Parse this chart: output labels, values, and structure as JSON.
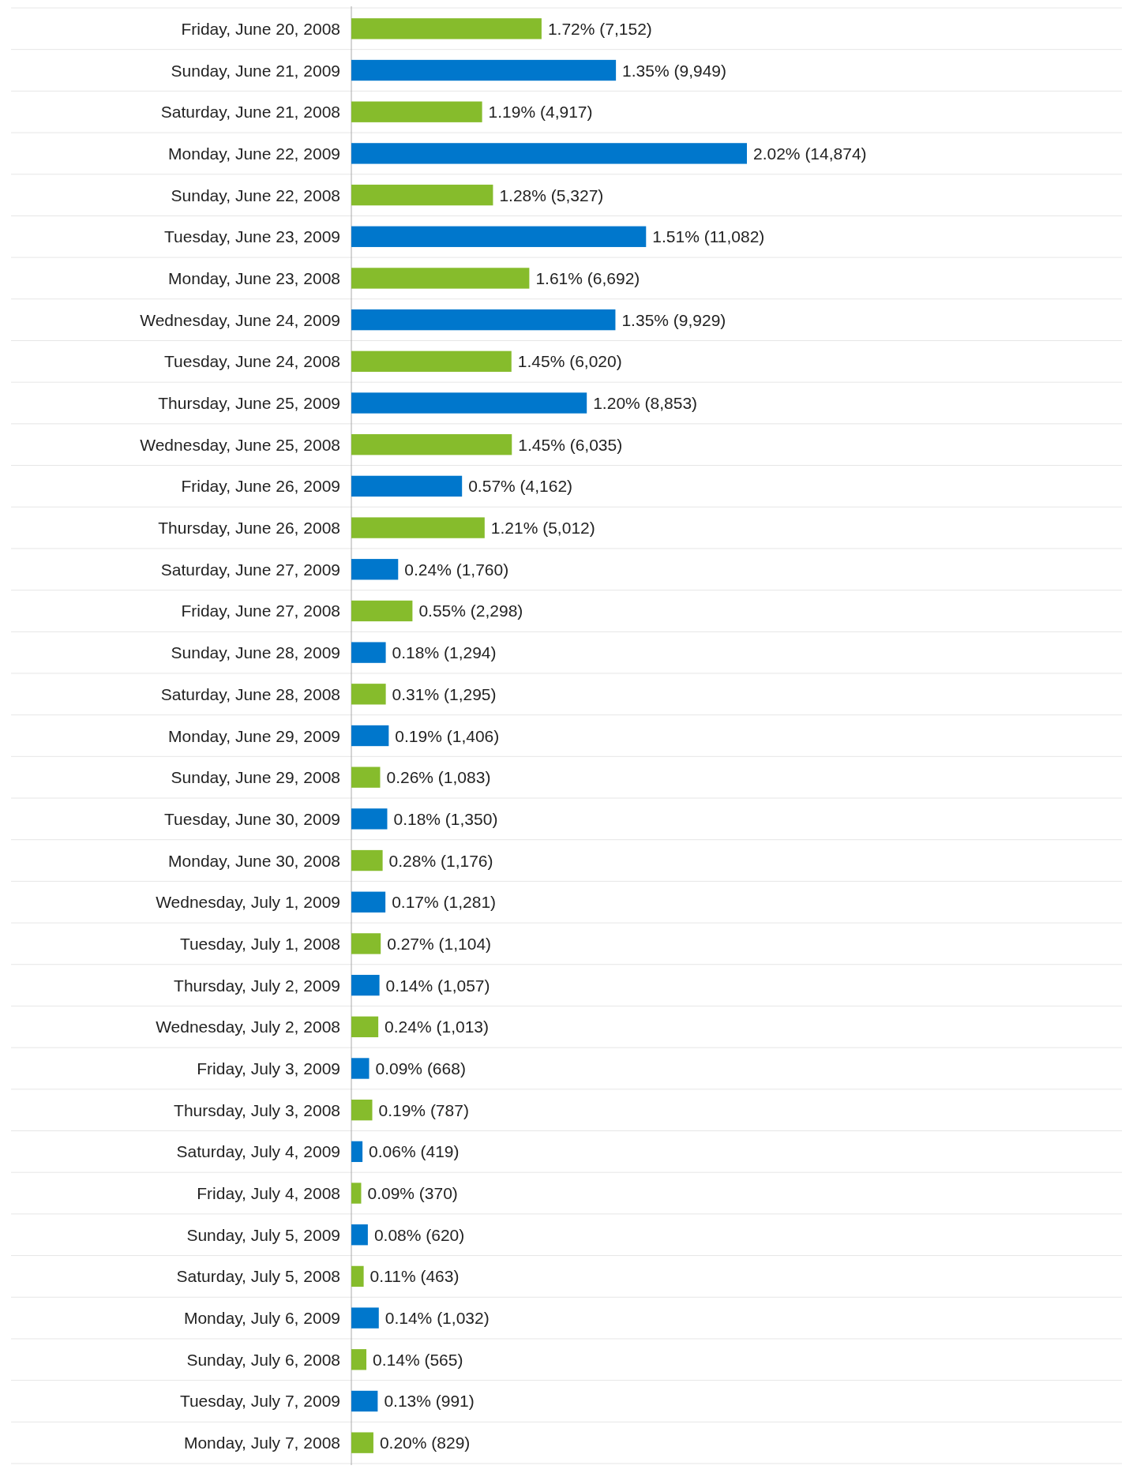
{
  "chart_data": {
    "type": "bar",
    "orientation": "horizontal",
    "grid": true,
    "categories": [
      "Friday, June 20, 2008",
      "Sunday, June 21, 2009",
      "Saturday, June 21, 2008",
      "Monday, June 22, 2009",
      "Sunday, June 22, 2008",
      "Tuesday, June 23, 2009",
      "Monday, June 23, 2008",
      "Wednesday, June 24, 2009",
      "Tuesday, June 24, 2008",
      "Thursday, June 25, 2009",
      "Wednesday, June 25, 2008",
      "Friday, June 26, 2009",
      "Thursday, June 26, 2008",
      "Saturday, June 27, 2009",
      "Friday, June 27, 2008",
      "Sunday, June 28, 2009",
      "Saturday, June 28, 2008",
      "Monday, June 29, 2009",
      "Sunday, June 29, 2008",
      "Tuesday, June 30, 2009",
      "Monday, June 30, 2008",
      "Wednesday, July 1, 2009",
      "Tuesday, July 1, 2008",
      "Thursday, July 2, 2009",
      "Wednesday, July 2, 2008",
      "Friday, July 3, 2009",
      "Thursday, July 3, 2008",
      "Saturday, July 4, 2009",
      "Friday, July 4, 2008",
      "Sunday, July 5, 2009",
      "Saturday, July 5, 2008",
      "Monday, July 6, 2009",
      "Sunday, July 6, 2008",
      "Tuesday, July 7, 2009",
      "Monday, July 7, 2008"
    ],
    "values": [
      7152,
      9949,
      4917,
      14874,
      5327,
      11082,
      6692,
      9929,
      6020,
      8853,
      6035,
      4162,
      5012,
      1760,
      2298,
      1294,
      1295,
      1406,
      1083,
      1350,
      1176,
      1281,
      1104,
      1057,
      1013,
      668,
      787,
      419,
      370,
      620,
      463,
      1032,
      565,
      991,
      829
    ],
    "value_labels": [
      "1.72% (7,152)",
      "1.35% (9,949)",
      "1.19% (4,917)",
      "2.02% (14,874)",
      "1.28% (5,327)",
      "1.51% (11,082)",
      "1.61% (6,692)",
      "1.35% (9,929)",
      "1.45% (6,020)",
      "1.20% (8,853)",
      "1.45% (6,035)",
      "0.57% (4,162)",
      "1.21% (5,012)",
      "0.24% (1,760)",
      "0.55% (2,298)",
      "0.18% (1,294)",
      "0.31% (1,295)",
      "0.19% (1,406)",
      "0.26% (1,083)",
      "0.18% (1,350)",
      "0.28% (1,176)",
      "0.17% (1,281)",
      "0.27% (1,104)",
      "0.14% (1,057)",
      "0.24% (1,013)",
      "0.09% (668)",
      "0.19% (787)",
      "0.06% (419)",
      "0.09% (370)",
      "0.08% (620)",
      "0.11% (463)",
      "0.14% (1,032)",
      "0.14% (565)",
      "0.13% (991)",
      "0.20% (829)"
    ],
    "colors": [
      "#86bc2c",
      "#0077cc",
      "#86bc2c",
      "#0077cc",
      "#86bc2c",
      "#0077cc",
      "#86bc2c",
      "#0077cc",
      "#86bc2c",
      "#0077cc",
      "#86bc2c",
      "#0077cc",
      "#86bc2c",
      "#0077cc",
      "#86bc2c",
      "#0077cc",
      "#86bc2c",
      "#0077cc",
      "#86bc2c",
      "#0077cc",
      "#86bc2c",
      "#0077cc",
      "#86bc2c",
      "#0077cc",
      "#86bc2c",
      "#0077cc",
      "#86bc2c",
      "#0077cc",
      "#86bc2c",
      "#0077cc",
      "#86bc2c",
      "#0077cc",
      "#86bc2c",
      "#0077cc",
      "#86bc2c"
    ]
  }
}
